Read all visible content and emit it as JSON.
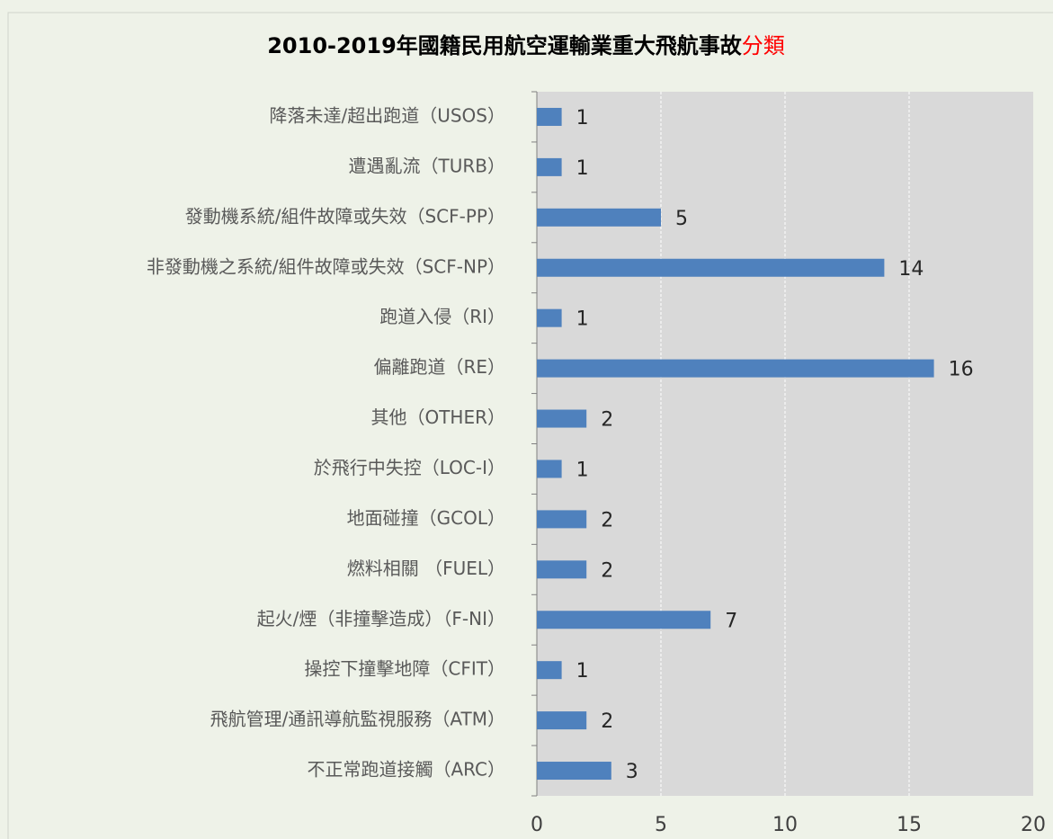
{
  "chart_data": {
    "type": "barh",
    "title": [
      "2010-2019年國籍民用航空運輸業重大飛航事故",
      "分類"
    ],
    "title_colors": [
      "#000000",
      "#ff0000"
    ],
    "categories": [
      "降落未達/超出跑道（USOS）",
      "遭遇亂流（TURB）",
      "發動機系統/組件故障或失效（SCF-PP）",
      "非發動機之系統/組件故障或失效（SCF-NP）",
      "跑道入侵（RI）",
      "偏離跑道（RE）",
      "其他（OTHER）",
      "於飛行中失控（LOC-I）",
      "地面碰撞（GCOL）",
      "燃料相關 （FUEL）",
      "起火/煙（非撞擊造成）（F-NI）",
      "操控下撞擊地障（CFIT）",
      "飛航管理/通訊導航監視服務（ATM）",
      "不正常跑道接觸（ARC）"
    ],
    "values": [
      1,
      1,
      5,
      14,
      1,
      16,
      2,
      1,
      2,
      2,
      7,
      1,
      2,
      3
    ],
    "color": "#4f81bd",
    "xlim": [
      0,
      20
    ],
    "xticks": [
      0,
      5,
      10,
      15,
      20
    ],
    "grid": true
  }
}
